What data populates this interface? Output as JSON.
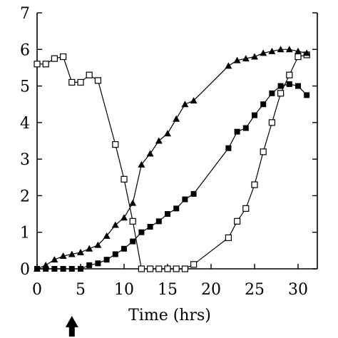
{
  "chart_data": {
    "type": "line",
    "xlabel": "Time (hrs)",
    "ylabel": "",
    "xlim": [
      0,
      32
    ],
    "ylim": [
      0,
      7
    ],
    "x_ticks": [
      0,
      5,
      10,
      15,
      20,
      25,
      30
    ],
    "y_ticks": [
      0,
      1,
      2,
      3,
      4,
      5,
      6,
      7
    ],
    "grid": false,
    "annotation": {
      "type": "arrow",
      "x": 4,
      "direction": "up"
    },
    "series": [
      {
        "marker": "open-square",
        "x": [
          0,
          1,
          2,
          3,
          4,
          5,
          6,
          7,
          9,
          10,
          11,
          12,
          13,
          14,
          15,
          16,
          17,
          18,
          22,
          23,
          24,
          25,
          26,
          27,
          28,
          29,
          30,
          31
        ],
        "y": [
          5.6,
          5.6,
          5.75,
          5.8,
          5.1,
          5.1,
          5.3,
          5.15,
          3.4,
          2.45,
          1.3,
          0.0,
          0.0,
          0.0,
          0.0,
          0.0,
          0.0,
          0.12,
          0.85,
          1.3,
          1.65,
          2.3,
          3.2,
          4.0,
          4.8,
          5.3,
          5.8,
          5.85
        ]
      },
      {
        "marker": "filled-triangle",
        "x": [
          0,
          1,
          2,
          3,
          4,
          5,
          6,
          7,
          8,
          9,
          10,
          11,
          12,
          13,
          14,
          15,
          16,
          17,
          18,
          22,
          23,
          24,
          25,
          26,
          27,
          28,
          29,
          30,
          31
        ],
        "y": [
          0.0,
          0.1,
          0.25,
          0.35,
          0.4,
          0.45,
          0.55,
          0.65,
          0.9,
          1.2,
          1.4,
          1.8,
          2.85,
          3.15,
          3.5,
          3.7,
          4.1,
          4.5,
          4.6,
          5.55,
          5.7,
          5.75,
          5.8,
          5.9,
          5.95,
          6.0,
          6.0,
          5.95,
          5.9
        ]
      },
      {
        "marker": "filled-square",
        "x": [
          0,
          1,
          2,
          3,
          4,
          5,
          6,
          7,
          8,
          9,
          10,
          11,
          12,
          13,
          14,
          15,
          16,
          17,
          18,
          22,
          23,
          24,
          25,
          26,
          27,
          28,
          29,
          30,
          31
        ],
        "y": [
          0.0,
          0.0,
          0.0,
          0.0,
          0.0,
          0.0,
          0.1,
          0.15,
          0.25,
          0.4,
          0.55,
          0.75,
          1.0,
          1.15,
          1.3,
          1.5,
          1.65,
          1.9,
          2.05,
          3.3,
          3.75,
          3.85,
          4.2,
          4.5,
          4.8,
          5.0,
          5.05,
          5.0,
          4.75
        ]
      }
    ]
  }
}
